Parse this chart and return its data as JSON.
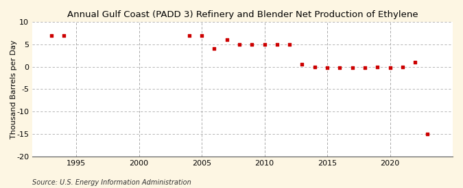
{
  "title": "Annual Gulf Coast (PADD 3) Refinery and Blender Net Production of Ethylene",
  "ylabel": "Thousand Barrels per Day",
  "source": "Source: U.S. Energy Information Administration",
  "background_color": "#fdf6e3",
  "plot_bg_color": "#ffffff",
  "marker_color": "#cc0000",
  "years": [
    1993,
    1994,
    2004,
    2005,
    2006,
    2007,
    2008,
    2009,
    2010,
    2011,
    2012,
    2013,
    2014,
    2015,
    2016,
    2017,
    2018,
    2019,
    2020,
    2021,
    2022,
    2023
  ],
  "values": [
    7.0,
    7.0,
    7.0,
    7.0,
    4.0,
    6.0,
    5.0,
    5.0,
    5.0,
    5.0,
    5.0,
    0.5,
    0.0,
    -0.3,
    -0.3,
    -0.3,
    -0.3,
    0.0,
    -0.3,
    0.0,
    1.0,
    -15.0
  ],
  "xlim": [
    1991.5,
    2025
  ],
  "ylim": [
    -20,
    10
  ],
  "yticks": [
    -20,
    -15,
    -10,
    -5,
    0,
    5,
    10
  ],
  "xticks": [
    1995,
    2000,
    2005,
    2010,
    2015,
    2020
  ],
  "grid_color": "#aaaaaa",
  "title_fontsize": 9.5,
  "label_fontsize": 8,
  "tick_fontsize": 8,
  "source_fontsize": 7
}
